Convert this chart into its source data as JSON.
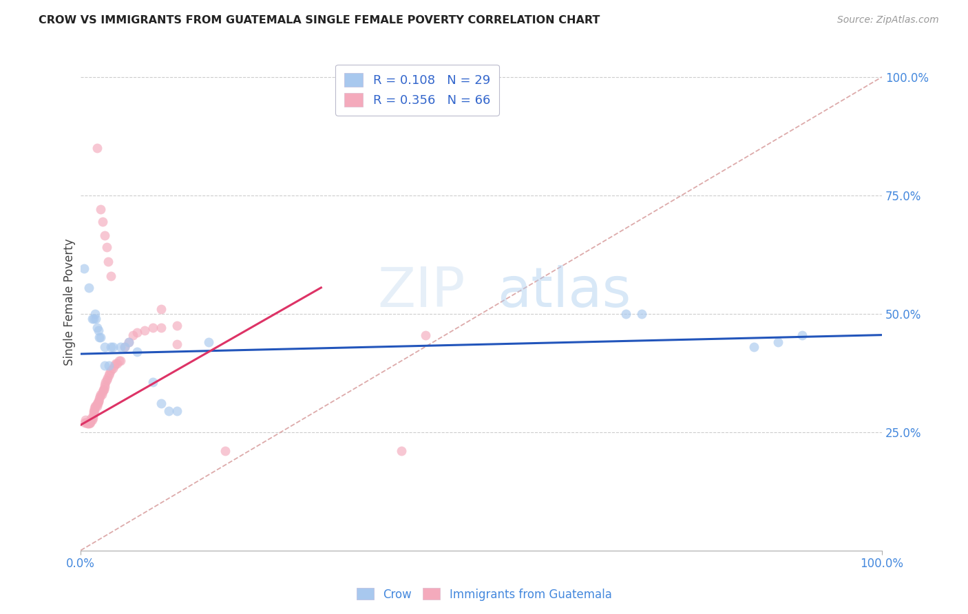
{
  "title": "CROW VS IMMIGRANTS FROM GUATEMALA SINGLE FEMALE POVERTY CORRELATION CHART",
  "source": "Source: ZipAtlas.com",
  "ylabel": "Single Female Poverty",
  "r_crow": "0.108",
  "n_crow": "29",
  "r_guate": "0.356",
  "n_guate": "66",
  "blue_scatter_color": "#a8c8ee",
  "pink_scatter_color": "#f4aabc",
  "blue_line_color": "#2255bb",
  "pink_line_color": "#dd3366",
  "diag_line_color": "#ddaaaa",
  "grid_color": "#cccccc",
  "title_color": "#222222",
  "source_color": "#999999",
  "axis_label_color": "#4488dd",
  "legend_text_color": "#3366cc",
  "background_color": "#ffffff",
  "crow_points": [
    [
      0.004,
      0.595
    ],
    [
      0.01,
      0.555
    ],
    [
      0.014,
      0.49
    ],
    [
      0.016,
      0.49
    ],
    [
      0.018,
      0.5
    ],
    [
      0.019,
      0.49
    ],
    [
      0.02,
      0.47
    ],
    [
      0.022,
      0.465
    ],
    [
      0.023,
      0.45
    ],
    [
      0.025,
      0.45
    ],
    [
      0.03,
      0.43
    ],
    [
      0.03,
      0.39
    ],
    [
      0.035,
      0.39
    ],
    [
      0.038,
      0.43
    ],
    [
      0.04,
      0.43
    ],
    [
      0.05,
      0.43
    ],
    [
      0.055,
      0.43
    ],
    [
      0.06,
      0.44
    ],
    [
      0.07,
      0.42
    ],
    [
      0.09,
      0.355
    ],
    [
      0.1,
      0.31
    ],
    [
      0.11,
      0.295
    ],
    [
      0.12,
      0.295
    ],
    [
      0.16,
      0.44
    ],
    [
      0.68,
      0.5
    ],
    [
      0.7,
      0.5
    ],
    [
      0.84,
      0.43
    ],
    [
      0.87,
      0.44
    ],
    [
      0.9,
      0.455
    ]
  ],
  "guate_points": [
    [
      0.005,
      0.27
    ],
    [
      0.006,
      0.275
    ],
    [
      0.007,
      0.27
    ],
    [
      0.008,
      0.268
    ],
    [
      0.009,
      0.268
    ],
    [
      0.01,
      0.27
    ],
    [
      0.01,
      0.27
    ],
    [
      0.011,
      0.268
    ],
    [
      0.012,
      0.27
    ],
    [
      0.013,
      0.274
    ],
    [
      0.013,
      0.278
    ],
    [
      0.014,
      0.275
    ],
    [
      0.015,
      0.28
    ],
    [
      0.015,
      0.285
    ],
    [
      0.016,
      0.29
    ],
    [
      0.016,
      0.295
    ],
    [
      0.017,
      0.295
    ],
    [
      0.017,
      0.3
    ],
    [
      0.018,
      0.305
    ],
    [
      0.019,
      0.305
    ],
    [
      0.02,
      0.305
    ],
    [
      0.02,
      0.31
    ],
    [
      0.021,
      0.31
    ],
    [
      0.022,
      0.315
    ],
    [
      0.022,
      0.315
    ],
    [
      0.023,
      0.32
    ],
    [
      0.024,
      0.325
    ],
    [
      0.025,
      0.33
    ],
    [
      0.026,
      0.33
    ],
    [
      0.027,
      0.335
    ],
    [
      0.028,
      0.34
    ],
    [
      0.029,
      0.34
    ],
    [
      0.03,
      0.345
    ],
    [
      0.03,
      0.35
    ],
    [
      0.031,
      0.355
    ],
    [
      0.032,
      0.36
    ],
    [
      0.033,
      0.365
    ],
    [
      0.035,
      0.37
    ],
    [
      0.036,
      0.375
    ],
    [
      0.038,
      0.38
    ],
    [
      0.04,
      0.385
    ],
    [
      0.042,
      0.39
    ],
    [
      0.044,
      0.395
    ],
    [
      0.045,
      0.395
    ],
    [
      0.048,
      0.4
    ],
    [
      0.05,
      0.4
    ],
    [
      0.055,
      0.43
    ],
    [
      0.06,
      0.44
    ],
    [
      0.065,
      0.455
    ],
    [
      0.07,
      0.46
    ],
    [
      0.08,
      0.465
    ],
    [
      0.09,
      0.47
    ],
    [
      0.1,
      0.47
    ],
    [
      0.12,
      0.475
    ],
    [
      0.02,
      0.85
    ],
    [
      0.025,
      0.72
    ],
    [
      0.027,
      0.695
    ],
    [
      0.03,
      0.665
    ],
    [
      0.032,
      0.64
    ],
    [
      0.034,
      0.61
    ],
    [
      0.038,
      0.58
    ],
    [
      0.1,
      0.51
    ],
    [
      0.12,
      0.435
    ],
    [
      0.18,
      0.21
    ],
    [
      0.4,
      0.21
    ],
    [
      0.43,
      0.455
    ]
  ],
  "crow_line_x": [
    0.0,
    1.0
  ],
  "crow_line_y": [
    0.415,
    0.455
  ],
  "guate_line_x": [
    0.0,
    0.3
  ],
  "guate_line_y": [
    0.265,
    0.555
  ],
  "diag_line_x": [
    0.0,
    1.0
  ],
  "diag_line_y": [
    0.0,
    1.0
  ],
  "xlim": [
    0.0,
    1.0
  ],
  "ylim": [
    0.0,
    1.05
  ],
  "xticks": [
    0.0,
    1.0
  ],
  "xtick_labels": [
    "0.0%",
    "100.0%"
  ],
  "yticks_right": [
    0.25,
    0.5,
    0.75,
    1.0
  ],
  "ytick_labels_right": [
    "25.0%",
    "50.0%",
    "75.0%",
    "100.0%"
  ],
  "legend_labels_bottom": [
    "Crow",
    "Immigrants from Guatemala"
  ],
  "watermark_text": "ZIPatlas",
  "marker_size": 100,
  "marker_alpha": 0.65
}
